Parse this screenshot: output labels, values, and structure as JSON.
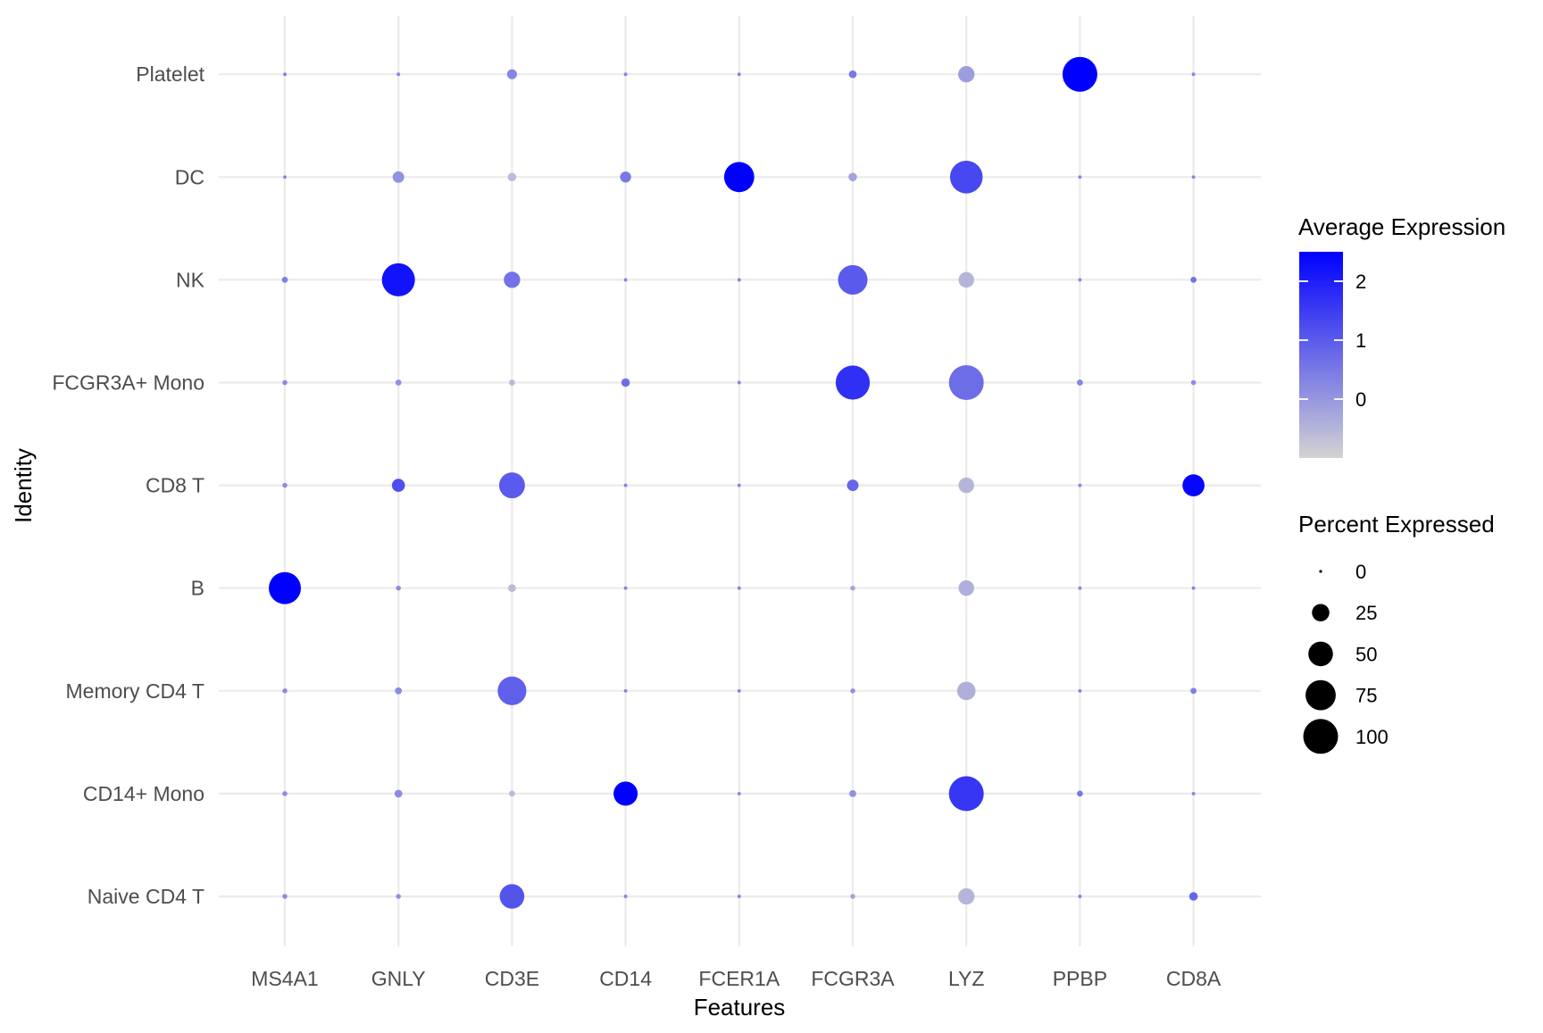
{
  "chart_data": {
    "type": "scatter",
    "subtype": "dot-plot",
    "xlabel": "Features",
    "ylabel": "Identity",
    "features": [
      "MS4A1",
      "GNLY",
      "CD3E",
      "CD14",
      "FCER1A",
      "FCGR3A",
      "LYZ",
      "PPBP",
      "CD8A"
    ],
    "identities": [
      "Naive CD4 T",
      "CD14+ Mono",
      "Memory CD4 T",
      "B",
      "CD8 T",
      "FCGR3A+ Mono",
      "NK",
      "DC",
      "Platelet"
    ],
    "grid": true,
    "legend_position": "right",
    "color_legend": {
      "title": "Average Expression",
      "low_color": "#d3d3d3",
      "high_color": "#0000ff",
      "range": [
        -1,
        2.5
      ],
      "ticks": [
        0,
        1,
        2
      ]
    },
    "size_legend": {
      "title": "Percent Expressed",
      "ticks": [
        0,
        25,
        50,
        75,
        100
      ],
      "range": [
        0,
        100
      ]
    },
    "points": [
      {
        "identity": "Platelet",
        "feature": "MS4A1",
        "pct": 1,
        "avg": 0.3
      },
      {
        "identity": "Platelet",
        "feature": "GNLY",
        "pct": 1,
        "avg": 0.3
      },
      {
        "identity": "Platelet",
        "feature": "CD3E",
        "pct": 8,
        "avg": 0.3
      },
      {
        "identity": "Platelet",
        "feature": "CD14",
        "pct": 1,
        "avg": 0.3
      },
      {
        "identity": "Platelet",
        "feature": "FCER1A",
        "pct": 1,
        "avg": 0.3
      },
      {
        "identity": "Platelet",
        "feature": "FCGR3A",
        "pct": 5,
        "avg": 0.5
      },
      {
        "identity": "Platelet",
        "feature": "LYZ",
        "pct": 22,
        "avg": -0.1
      },
      {
        "identity": "Platelet",
        "feature": "PPBP",
        "pct": 100,
        "avg": 2.5
      },
      {
        "identity": "Platelet",
        "feature": "CD8A",
        "pct": 1,
        "avg": 0.3
      },
      {
        "identity": "DC",
        "feature": "MS4A1",
        "pct": 1,
        "avg": 0.3
      },
      {
        "identity": "DC",
        "feature": "GNLY",
        "pct": 11,
        "avg": 0.1
      },
      {
        "identity": "DC",
        "feature": "CD3E",
        "pct": 6,
        "avg": -0.6
      },
      {
        "identity": "DC",
        "feature": "CD14",
        "pct": 10,
        "avg": 0.5
      },
      {
        "identity": "DC",
        "feature": "FCER1A",
        "pct": 75,
        "avg": 2.5
      },
      {
        "identity": "DC",
        "feature": "FCGR3A",
        "pct": 6,
        "avg": -0.2
      },
      {
        "identity": "DC",
        "feature": "LYZ",
        "pct": 88,
        "avg": 1.3
      },
      {
        "identity": "DC",
        "feature": "PPBP",
        "pct": 1,
        "avg": 0.3
      },
      {
        "identity": "DC",
        "feature": "CD8A",
        "pct": 1,
        "avg": 0.3
      },
      {
        "identity": "NK",
        "feature": "MS4A1",
        "pct": 3,
        "avg": 0.4
      },
      {
        "identity": "NK",
        "feature": "GNLY",
        "pct": 90,
        "avg": 2.2
      },
      {
        "identity": "NK",
        "feature": "CD3E",
        "pct": 22,
        "avg": 0.6
      },
      {
        "identity": "NK",
        "feature": "CD14",
        "pct": 1,
        "avg": 0.3
      },
      {
        "identity": "NK",
        "feature": "FCER1A",
        "pct": 1,
        "avg": 0.3
      },
      {
        "identity": "NK",
        "feature": "FCGR3A",
        "pct": 72,
        "avg": 1.0
      },
      {
        "identity": "NK",
        "feature": "LYZ",
        "pct": 20,
        "avg": -0.5
      },
      {
        "identity": "NK",
        "feature": "PPBP",
        "pct": 1,
        "avg": 0.3
      },
      {
        "identity": "NK",
        "feature": "CD8A",
        "pct": 3,
        "avg": 0.6
      },
      {
        "identity": "FCGR3A+ Mono",
        "feature": "MS4A1",
        "pct": 2,
        "avg": 0.2
      },
      {
        "identity": "FCGR3A+ Mono",
        "feature": "GNLY",
        "pct": 3,
        "avg": 0.1
      },
      {
        "identity": "FCGR3A+ Mono",
        "feature": "CD3E",
        "pct": 3,
        "avg": -0.6
      },
      {
        "identity": "FCGR3A+ Mono",
        "feature": "CD14",
        "pct": 6,
        "avg": 0.7
      },
      {
        "identity": "FCGR3A+ Mono",
        "feature": "FCER1A",
        "pct": 1,
        "avg": 0.3
      },
      {
        "identity": "FCGR3A+ Mono",
        "feature": "FCGR3A",
        "pct": 96,
        "avg": 1.7
      },
      {
        "identity": "FCGR3A+ Mono",
        "feature": "LYZ",
        "pct": 100,
        "avg": 0.7
      },
      {
        "identity": "FCGR3A+ Mono",
        "feature": "PPBP",
        "pct": 3,
        "avg": 0.3
      },
      {
        "identity": "FCGR3A+ Mono",
        "feature": "CD8A",
        "pct": 2,
        "avg": 0.2
      },
      {
        "identity": "CD8 T",
        "feature": "MS4A1",
        "pct": 2,
        "avg": 0.2
      },
      {
        "identity": "CD8 T",
        "feature": "GNLY",
        "pct": 14,
        "avg": 1.2
      },
      {
        "identity": "CD8 T",
        "feature": "CD3E",
        "pct": 55,
        "avg": 1.0
      },
      {
        "identity": "CD8 T",
        "feature": "CD14",
        "pct": 1,
        "avg": 0.3
      },
      {
        "identity": "CD8 T",
        "feature": "FCER1A",
        "pct": 1,
        "avg": 0.3
      },
      {
        "identity": "CD8 T",
        "feature": "FCGR3A",
        "pct": 11,
        "avg": 0.8
      },
      {
        "identity": "CD8 T",
        "feature": "LYZ",
        "pct": 20,
        "avg": -0.5
      },
      {
        "identity": "CD8 T",
        "feature": "PPBP",
        "pct": 1,
        "avg": 0.3
      },
      {
        "identity": "CD8 T",
        "feature": "CD8A",
        "pct": 40,
        "avg": 2.4
      },
      {
        "identity": "B",
        "feature": "MS4A1",
        "pct": 85,
        "avg": 2.5
      },
      {
        "identity": "B",
        "feature": "GNLY",
        "pct": 2,
        "avg": 0.2
      },
      {
        "identity": "B",
        "feature": "CD3E",
        "pct": 5,
        "avg": -0.6
      },
      {
        "identity": "B",
        "feature": "CD14",
        "pct": 1,
        "avg": 0.3
      },
      {
        "identity": "B",
        "feature": "FCER1A",
        "pct": 1,
        "avg": 0.3
      },
      {
        "identity": "B",
        "feature": "FCGR3A",
        "pct": 2,
        "avg": -0.2
      },
      {
        "identity": "B",
        "feature": "LYZ",
        "pct": 20,
        "avg": -0.4
      },
      {
        "identity": "B",
        "feature": "PPBP",
        "pct": 1,
        "avg": 0.3
      },
      {
        "identity": "B",
        "feature": "CD8A",
        "pct": 1,
        "avg": 0.3
      },
      {
        "identity": "Memory CD4 T",
        "feature": "MS4A1",
        "pct": 2,
        "avg": 0.2
      },
      {
        "identity": "Memory CD4 T",
        "feature": "GNLY",
        "pct": 4,
        "avg": 0.2
      },
      {
        "identity": "Memory CD4 T",
        "feature": "CD3E",
        "pct": 68,
        "avg": 0.9
      },
      {
        "identity": "Memory CD4 T",
        "feature": "CD14",
        "pct": 1,
        "avg": 0.3
      },
      {
        "identity": "Memory CD4 T",
        "feature": "FCER1A",
        "pct": 1,
        "avg": 0.3
      },
      {
        "identity": "Memory CD4 T",
        "feature": "FCGR3A",
        "pct": 2,
        "avg": 0.1
      },
      {
        "identity": "Memory CD4 T",
        "feature": "LYZ",
        "pct": 28,
        "avg": -0.4
      },
      {
        "identity": "Memory CD4 T",
        "feature": "PPBP",
        "pct": 1,
        "avg": 0.3
      },
      {
        "identity": "Memory CD4 T",
        "feature": "CD8A",
        "pct": 3,
        "avg": 0.4
      },
      {
        "identity": "CD14+ Mono",
        "feature": "MS4A1",
        "pct": 2,
        "avg": 0.2
      },
      {
        "identity": "CD14+ Mono",
        "feature": "GNLY",
        "pct": 5,
        "avg": 0.2
      },
      {
        "identity": "CD14+ Mono",
        "feature": "CD3E",
        "pct": 3,
        "avg": -0.6
      },
      {
        "identity": "CD14+ Mono",
        "feature": "CD14",
        "pct": 48,
        "avg": 2.5
      },
      {
        "identity": "CD14+ Mono",
        "feature": "FCER1A",
        "pct": 1,
        "avg": 0.3
      },
      {
        "identity": "CD14+ Mono",
        "feature": "FCGR3A",
        "pct": 4,
        "avg": 0.1
      },
      {
        "identity": "CD14+ Mono",
        "feature": "LYZ",
        "pct": 100,
        "avg": 1.6
      },
      {
        "identity": "CD14+ Mono",
        "feature": "PPBP",
        "pct": 3,
        "avg": 0.5
      },
      {
        "identity": "CD14+ Mono",
        "feature": "CD8A",
        "pct": 1,
        "avg": 0.3
      },
      {
        "identity": "Naive CD4 T",
        "feature": "MS4A1",
        "pct": 2,
        "avg": 0.2
      },
      {
        "identity": "Naive CD4 T",
        "feature": "GNLY",
        "pct": 2,
        "avg": 0.1
      },
      {
        "identity": "Naive CD4 T",
        "feature": "CD3E",
        "pct": 50,
        "avg": 1.1
      },
      {
        "identity": "Naive CD4 T",
        "feature": "CD14",
        "pct": 1,
        "avg": 0.3
      },
      {
        "identity": "Naive CD4 T",
        "feature": "FCER1A",
        "pct": 1,
        "avg": 0.3
      },
      {
        "identity": "Naive CD4 T",
        "feature": "FCGR3A",
        "pct": 2,
        "avg": -0.2
      },
      {
        "identity": "Naive CD4 T",
        "feature": "LYZ",
        "pct": 22,
        "avg": -0.5
      },
      {
        "identity": "Naive CD4 T",
        "feature": "PPBP",
        "pct": 1,
        "avg": 0.3
      },
      {
        "identity": "Naive CD4 T",
        "feature": "CD8A",
        "pct": 6,
        "avg": 0.8
      }
    ]
  }
}
